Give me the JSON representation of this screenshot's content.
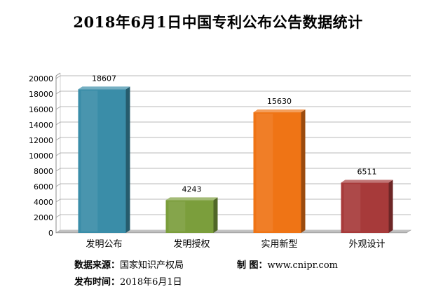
{
  "chart_data": {
    "type": "bar",
    "title": "2018年6月1日中国专利公布公告数据统计",
    "categories": [
      "发明公布",
      "发明授权",
      "实用新型",
      "外观设计"
    ],
    "values": [
      18607,
      4243,
      15630,
      6511
    ],
    "ylim": [
      0,
      20000
    ],
    "yticks": [
      0,
      2000,
      4000,
      6000,
      8000,
      10000,
      12000,
      14000,
      16000,
      18000,
      20000
    ],
    "grid": true,
    "legend": "none",
    "colors": [
      "#3a8da8",
      "#7b9e3c",
      "#ef7415",
      "#a73a3a"
    ]
  },
  "footer": {
    "source_label": "数据来源：",
    "source_value": "国家知识产权局",
    "maker_label": "制  图：",
    "maker_value": "www.cnipr.com",
    "date_label": "发布时间：",
    "date_value": "2018年6月1日"
  }
}
